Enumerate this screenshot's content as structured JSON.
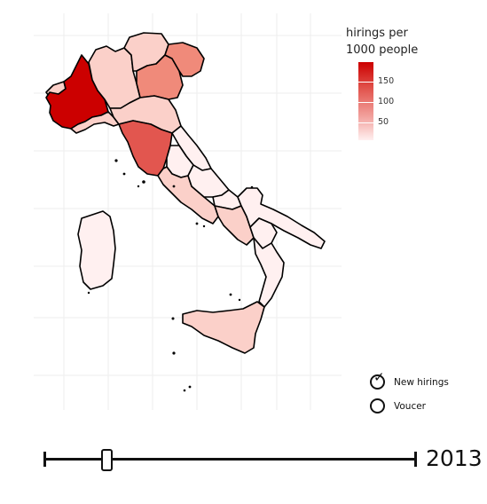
{
  "legend": {
    "title_line1": "hirings per",
    "title_line2": "1000 people",
    "ticks": [
      "150",
      "100",
      "50"
    ]
  },
  "options": {
    "new_hirings": {
      "label": "New hirings",
      "selected": true
    },
    "voucer": {
      "label": "Voucer",
      "selected": false
    }
  },
  "slider": {
    "year": "2013"
  },
  "colors": {
    "max": "#cc0000",
    "high": "#e2564f",
    "mid": "#f08a7a",
    "low": "#fbd0c9",
    "min": "#fff0f0",
    "outline": "#000000"
  },
  "regions": [
    {
      "name": "Piemonte",
      "level": "max"
    },
    {
      "name": "Toscana",
      "level": "high"
    },
    {
      "name": "Veneto",
      "level": "mid"
    },
    {
      "name": "Friuli-Venezia Giulia",
      "level": "mid"
    },
    {
      "name": "Lombardia",
      "level": "low"
    },
    {
      "name": "Trentino-Alto Adige",
      "level": "low"
    },
    {
      "name": "Emilia-Romagna",
      "level": "low"
    },
    {
      "name": "Liguria",
      "level": "low"
    },
    {
      "name": "Valle d'Aosta",
      "level": "low"
    },
    {
      "name": "Lazio",
      "level": "low"
    },
    {
      "name": "Campania",
      "level": "low"
    },
    {
      "name": "Sicilia",
      "level": "low"
    },
    {
      "name": "Umbria",
      "level": "min"
    },
    {
      "name": "Marche",
      "level": "min"
    },
    {
      "name": "Abruzzo",
      "level": "min"
    },
    {
      "name": "Molise",
      "level": "min"
    },
    {
      "name": "Puglia",
      "level": "min"
    },
    {
      "name": "Basilicata",
      "level": "min"
    },
    {
      "name": "Calabria",
      "level": "min"
    },
    {
      "name": "Sardegna",
      "level": "min"
    }
  ]
}
